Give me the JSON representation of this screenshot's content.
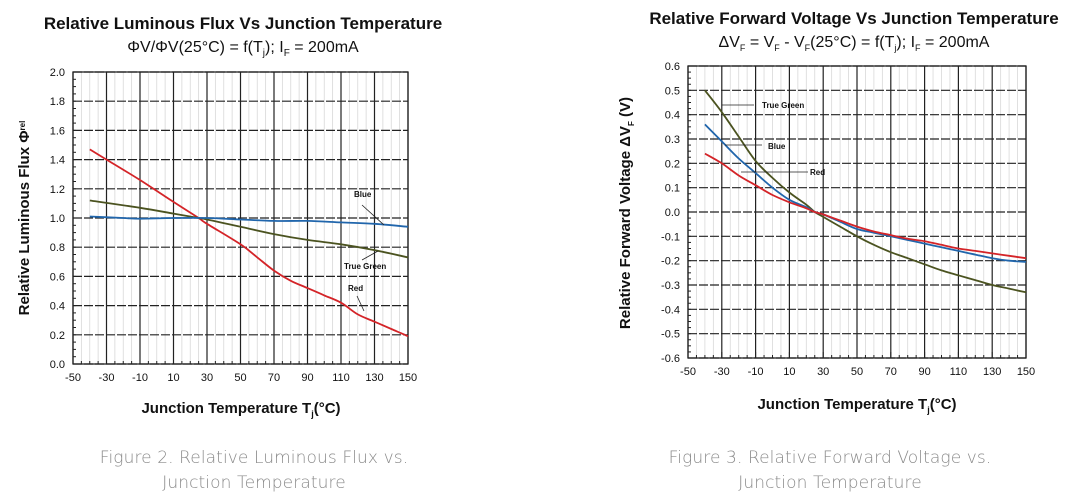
{
  "chart_data": [
    {
      "type": "line",
      "title": "Relative Luminous Flux Vs Junction Temperature",
      "subtitle": {
        "main": "ΦV/ΦV(25°C) = f(T",
        "sub_j": "j",
        "rest": "); I",
        "sub_f": "F",
        "end": " = 200mA"
      },
      "xlabel": {
        "main": "Junction Temperature T",
        "sub": "j",
        "end": "(°C)"
      },
      "ylabel": {
        "main": "Relative Luminous Flux Φ",
        "sub": "rel"
      },
      "xlim": [
        -50,
        150
      ],
      "ylim": [
        0.0,
        2.0
      ],
      "x_ticks": [
        -50,
        -30,
        -10,
        10,
        30,
        50,
        70,
        90,
        110,
        130,
        150
      ],
      "x_tick_labels": [
        "-50",
        "-30",
        "-10",
        "10",
        "30",
        "50",
        "70",
        "90",
        "110",
        "130",
        "150"
      ],
      "y_ticks": [
        0.0,
        0.2,
        0.4,
        0.6,
        0.8,
        1.0,
        1.2,
        1.4,
        1.6,
        1.8,
        2.0
      ],
      "y_tick_labels": [
        "0.0",
        "0.2",
        "0.4",
        "0.6",
        "0.8",
        "1.0",
        "1.2",
        "1.4",
        "1.6",
        "1.8",
        "2.0"
      ],
      "grid": true,
      "series": [
        {
          "name": "Red",
          "color": "#d42428",
          "x": [
            -40,
            -30,
            -10,
            10,
            25,
            30,
            50,
            60,
            70,
            80,
            90,
            100,
            110,
            120,
            130,
            140,
            150
          ],
          "y": [
            1.47,
            1.4,
            1.26,
            1.11,
            1.0,
            0.96,
            0.82,
            0.73,
            0.64,
            0.57,
            0.52,
            0.47,
            0.42,
            0.34,
            0.29,
            0.24,
            0.19
          ]
        },
        {
          "name": "True Green",
          "color": "#4b5320",
          "x": [
            -40,
            -10,
            10,
            25,
            30,
            50,
            70,
            90,
            110,
            130,
            150
          ],
          "y": [
            1.12,
            1.07,
            1.03,
            1.0,
            0.99,
            0.94,
            0.89,
            0.85,
            0.82,
            0.78,
            0.73
          ]
        },
        {
          "name": "Blue",
          "color": "#2166ac",
          "x": [
            -40,
            -20,
            -10,
            10,
            30,
            50,
            70,
            90,
            110,
            130,
            150
          ],
          "y": [
            1.01,
            1.0,
            0.995,
            1.0,
            1.0,
            0.99,
            0.98,
            0.98,
            0.97,
            0.96,
            0.94
          ]
        }
      ],
      "annotations": [
        "Blue",
        "True Green",
        "Red"
      ]
    },
    {
      "type": "line",
      "title": "Relative Forward Voltage Vs Junction Temperature",
      "subtitle": {
        "p1": "ΔV",
        "s1": "F",
        "p2": " = V",
        "s2": "F",
        "p3": " - V",
        "s3": "F",
        "p4": "(25°C) = f(T",
        "s4": "j",
        "p5": "); I",
        "s5": "F",
        "p6": " = 200mA"
      },
      "xlabel": {
        "main": "Junction Temperature T",
        "sub": "j",
        "end": "(°C)"
      },
      "ylabel": {
        "main": "Relative Forward Voltage ΔV",
        "sub": "F",
        "end": " (V)"
      },
      "xlim": [
        -50,
        150
      ],
      "ylim": [
        -0.6,
        0.6
      ],
      "x_ticks": [
        -50,
        -30,
        -10,
        10,
        30,
        50,
        70,
        90,
        110,
        130,
        150
      ],
      "x_tick_labels": [
        "-50",
        "-30",
        "-10",
        "10",
        "30",
        "50",
        "70",
        "90",
        "110",
        "130",
        "150"
      ],
      "y_ticks": [
        -0.6,
        -0.5,
        -0.4,
        -0.3,
        -0.2,
        -0.1,
        0.0,
        0.1,
        0.2,
        0.3,
        0.4,
        0.5,
        0.6
      ],
      "y_tick_labels": [
        "-0.6",
        "-0.5",
        "-0.4",
        "-0.3",
        "-0.2",
        "-0.1",
        "0.0",
        "0.1",
        "0.2",
        "0.3",
        "0.4",
        "0.5",
        "0.6"
      ],
      "grid": true,
      "series": [
        {
          "name": "True Green",
          "color": "#4b5320",
          "x": [
            -40,
            -30,
            -20,
            -10,
            0,
            10,
            20,
            25,
            30,
            40,
            50,
            60,
            70,
            80,
            90,
            100,
            110,
            120,
            130,
            140,
            150
          ],
          "y": [
            0.5,
            0.41,
            0.31,
            0.21,
            0.14,
            0.08,
            0.03,
            0.0,
            -0.02,
            -0.06,
            -0.1,
            -0.135,
            -0.165,
            -0.19,
            -0.215,
            -0.24,
            -0.26,
            -0.28,
            -0.3,
            -0.315,
            -0.33
          ]
        },
        {
          "name": "Blue",
          "color": "#2166ac",
          "x": [
            -40,
            -30,
            -20,
            -10,
            0,
            10,
            20,
            25,
            30,
            40,
            50,
            60,
            70,
            80,
            90,
            100,
            110,
            120,
            130,
            140,
            150
          ],
          "y": [
            0.36,
            0.29,
            0.22,
            0.16,
            0.1,
            0.05,
            0.02,
            0.0,
            -0.01,
            -0.04,
            -0.07,
            -0.085,
            -0.1,
            -0.115,
            -0.13,
            -0.145,
            -0.16,
            -0.175,
            -0.19,
            -0.2,
            -0.205
          ]
        },
        {
          "name": "Red",
          "color": "#d42428",
          "x": [
            -40,
            -30,
            -20,
            -10,
            0,
            10,
            20,
            25,
            30,
            40,
            50,
            60,
            70,
            80,
            90,
            100,
            110,
            120,
            130,
            140,
            150
          ],
          "y": [
            0.24,
            0.2,
            0.15,
            0.11,
            0.07,
            0.04,
            0.015,
            0.0,
            -0.01,
            -0.035,
            -0.06,
            -0.08,
            -0.095,
            -0.11,
            -0.12,
            -0.135,
            -0.15,
            -0.16,
            -0.17,
            -0.18,
            -0.19
          ]
        }
      ],
      "annotations": [
        "True Green",
        "Blue",
        "Red"
      ]
    }
  ],
  "captions": {
    "fig2_line1": "Figure 2. Relative Luminous Flux vs.",
    "fig2_line2": "Junction Temperature",
    "fig3_line1": "Figure 3. Relative Forward Voltage vs.",
    "fig3_line2": "Junction Temperature"
  },
  "colors": {
    "red": "#d42428",
    "green": "#4b5320",
    "blue": "#2166ac",
    "caption": "#8a8a8a"
  }
}
